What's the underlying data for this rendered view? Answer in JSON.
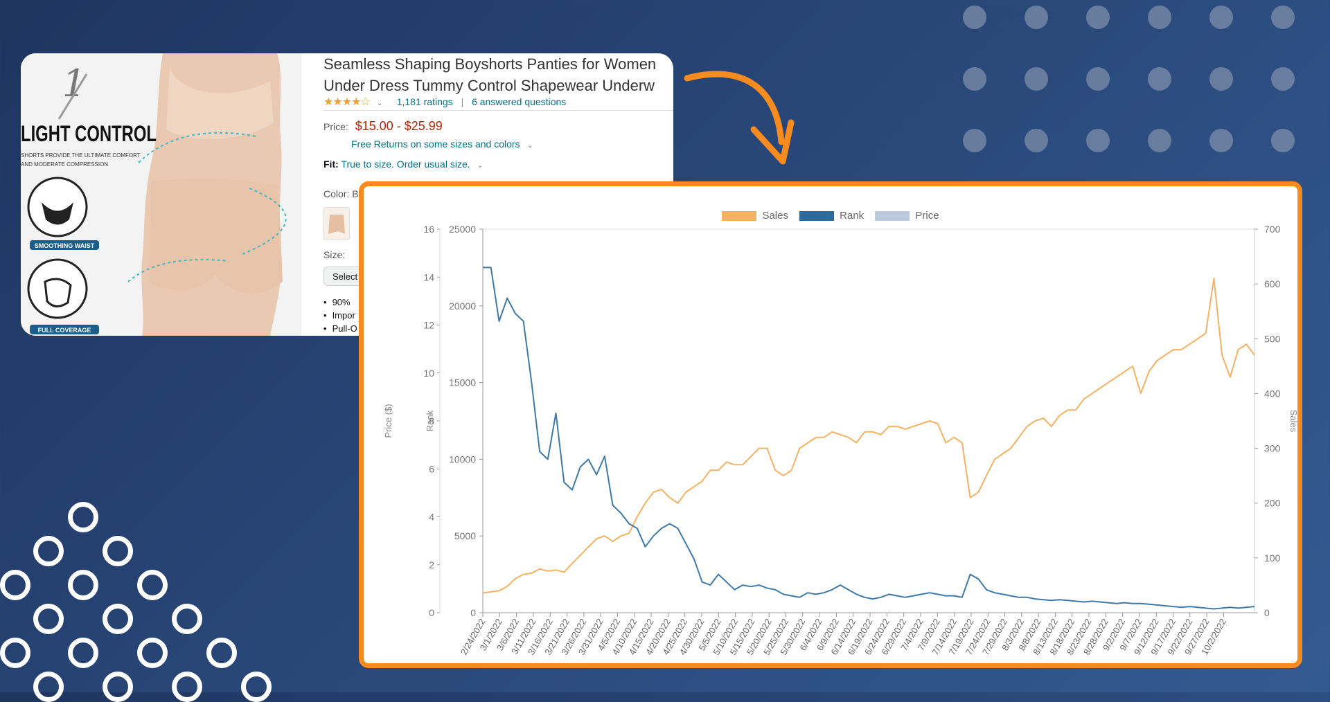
{
  "product": {
    "title_line1": "Seamless Shaping Boyshorts Panties for Women",
    "title_line2": "Under Dress Tummy Control Shapewear Underw",
    "stars": "★★★★☆",
    "ratings": "1,181 ratings",
    "questions": "6 answered questions",
    "price_label": "Price:",
    "price": "$15.00 - $25.99",
    "returns": "Free Returns on some sizes and colors",
    "fit_label": "Fit:",
    "fit_text": "True to size. Order usual size.",
    "color_label": "Color: B",
    "size_label": "Size:",
    "select_label": "Select",
    "bullets": [
      "90%",
      "Impor",
      "Pull-O"
    ],
    "image_texts": {
      "logo": "1",
      "headline": "LIGHT CONTROL",
      "sub1": "SHORTS PROVIDE THE ULTIMATE COMFORT",
      "sub2": "AND MODERATE COMPRESSION",
      "badge1": "SMOOTHING WAIST",
      "badge2": "FULL COVERAGE"
    }
  },
  "colors": {
    "accent": "#f68b1f",
    "sales": "#f7b162",
    "rank": "#3e79a8",
    "price": "#b9cbdc"
  },
  "chart_data": {
    "type": "line",
    "legend": [
      "Sales",
      "Rank",
      "Price"
    ],
    "legend_placement": "top-center",
    "y_left_price": {
      "label": "Price ($)",
      "ylim": [
        0,
        16
      ],
      "ticks": [
        0,
        2,
        4,
        6,
        8,
        10,
        12,
        14,
        16
      ]
    },
    "y_left_rank": {
      "label": "Rank",
      "ylim": [
        0,
        25000
      ],
      "ticks": [
        0,
        5000,
        10000,
        15000,
        20000,
        25000
      ]
    },
    "y_right_sales": {
      "label": "Sales",
      "ylim": [
        0,
        700
      ],
      "ticks": [
        0,
        100,
        200,
        300,
        400,
        500,
        600,
        700
      ]
    },
    "x_ticks": [
      "2/24/2022",
      "3/1/2022",
      "3/6/2022",
      "3/11/2022",
      "3/16/2022",
      "3/21/2022",
      "3/26/2022",
      "3/31/2022",
      "4/5/2022",
      "4/10/2022",
      "4/15/2022",
      "4/20/2022",
      "4/25/2022",
      "4/30/2022",
      "5/5/2022",
      "5/10/2022",
      "5/15/2022",
      "5/20/2022",
      "5/25/2022",
      "5/30/2022",
      "6/4/2022",
      "6/9/2022",
      "6/14/2022",
      "6/19/2022",
      "6/24/2022",
      "6/29/2022",
      "7/4/2022",
      "7/9/2022",
      "7/14/2022",
      "7/19/2022",
      "7/24/2022",
      "7/29/2022",
      "8/3/2022",
      "8/8/2022",
      "8/13/2022",
      "8/18/2022",
      "8/23/2022",
      "8/28/2022",
      "9/2/2022",
      "9/7/2022",
      "9/12/2022",
      "9/17/2022",
      "9/22/2022",
      "9/27/2022",
      "10/2/2022"
    ],
    "series": [
      {
        "name": "Sales",
        "axis": "right",
        "values": [
          36,
          38,
          40,
          48,
          62,
          70,
          72,
          80,
          76,
          78,
          74,
          90,
          105,
          120,
          135,
          140,
          130,
          140,
          145,
          175,
          200,
          220,
          225,
          210,
          200,
          220,
          230,
          240,
          260,
          260,
          275,
          270,
          270,
          285,
          300,
          300,
          260,
          250,
          260,
          300,
          310,
          320,
          320,
          330,
          325,
          320,
          310,
          330,
          330,
          325,
          340,
          340,
          335,
          340,
          345,
          350,
          345,
          310,
          320,
          310,
          210,
          220,
          250,
          280,
          290,
          300,
          320,
          340,
          350,
          355,
          340,
          360,
          370,
          370,
          390,
          400,
          410,
          420,
          430,
          440,
          450,
          400,
          440,
          460,
          470,
          480,
          480,
          490,
          500,
          510,
          610,
          470,
          430,
          480,
          490,
          470
        ]
      },
      {
        "name": "Rank",
        "axis": "left",
        "values": [
          22500,
          22500,
          19000,
          20500,
          19500,
          19000,
          15000,
          10500,
          10000,
          13000,
          8500,
          8000,
          9500,
          10000,
          9000,
          10200,
          7000,
          6500,
          5800,
          5500,
          4300,
          5000,
          5500,
          5800,
          5500,
          4500,
          3500,
          2000,
          1800,
          2500,
          2000,
          1500,
          1800,
          1700,
          1800,
          1600,
          1500,
          1200,
          1100,
          1000,
          1300,
          1200,
          1300,
          1500,
          1800,
          1500,
          1200,
          1000,
          900,
          1000,
          1200,
          1100,
          1000,
          1100,
          1200,
          1300,
          1200,
          1100,
          1100,
          1000,
          2500,
          2200,
          1500,
          1300,
          1200,
          1100,
          1000,
          1000,
          900,
          850,
          800,
          850,
          800,
          750,
          700,
          750,
          700,
          650,
          600,
          650,
          600,
          600,
          550,
          500,
          450,
          400,
          350,
          400,
          350,
          300,
          250,
          300,
          350,
          300,
          350,
          400
        ]
      },
      {
        "name": "Price",
        "axis": "left",
        "values": []
      }
    ]
  }
}
